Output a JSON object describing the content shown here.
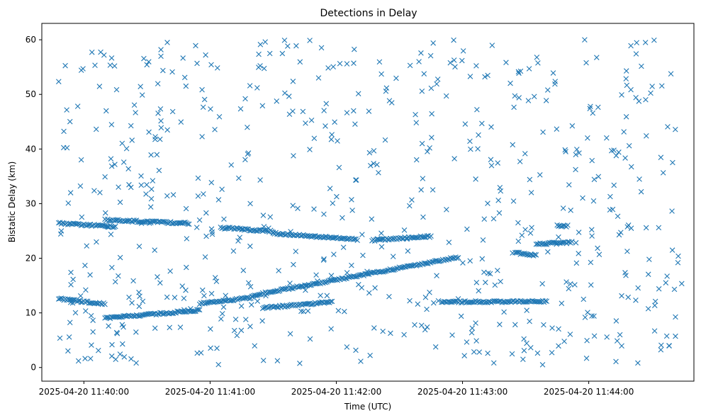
{
  "chart_data": {
    "type": "scatter",
    "title": "Detections in Delay",
    "xlabel": "Time (UTC)",
    "ylabel": "Bistatic Delay (km)",
    "marker": "x",
    "color": "#1f77b4",
    "x_unit": "time",
    "xlim": [
      "2025-04-20 11:39:40",
      "2025-04-20 11:44:50"
    ],
    "ylim": [
      -2.5,
      63
    ],
    "x_ticks": [
      {
        "time": "2025-04-20 11:40:00",
        "label": "2025-04-20 11:40:00"
      },
      {
        "time": "2025-04-20 11:41:00",
        "label": "2025-04-20 11:41:00"
      },
      {
        "time": "2025-04-20 11:42:00",
        "label": "2025-04-20 11:42:00"
      },
      {
        "time": "2025-04-20 11:43:00",
        "label": "2025-04-20 11:43:00"
      },
      {
        "time": "2025-04-20 11:44:00",
        "label": "2025-04-20 11:44:00"
      }
    ],
    "y_ticks": [
      0,
      10,
      20,
      30,
      40,
      50,
      60
    ],
    "grid": false,
    "legend": "none",
    "tracks": [
      {
        "start_time": "2025-04-20 11:39:48",
        "end_time": "2025-04-20 11:40:10",
        "start_delay": 12.6,
        "end_delay": 11.6
      },
      {
        "start_time": "2025-04-20 11:40:10",
        "end_time": "2025-04-20 11:40:55",
        "start_delay": 9.0,
        "end_delay": 10.5
      },
      {
        "start_time": "2025-04-20 11:40:55",
        "end_time": "2025-04-20 11:41:20",
        "start_delay": 11.7,
        "end_delay": 12.8
      },
      {
        "start_time": "2025-04-20 11:41:20",
        "end_time": "2025-04-20 11:42:58",
        "start_delay": 13.2,
        "end_delay": 20.2
      },
      {
        "start_time": "2025-04-20 11:41:25",
        "end_time": "2025-04-20 11:41:58",
        "start_delay": 10.9,
        "end_delay": 12.0
      },
      {
        "start_time": "2025-04-20 11:42:50",
        "end_time": "2025-04-20 11:43:40",
        "start_delay": 12.0,
        "end_delay": 12.1
      },
      {
        "start_time": "2025-04-20 11:39:48",
        "end_time": "2025-04-20 11:40:15",
        "start_delay": 26.4,
        "end_delay": 25.8
      },
      {
        "start_time": "2025-04-20 11:40:10",
        "end_time": "2025-04-20 11:40:50",
        "start_delay": 27.0,
        "end_delay": 26.4
      },
      {
        "start_time": "2025-04-20 11:41:05",
        "end_time": "2025-04-20 11:41:30",
        "start_delay": 25.6,
        "end_delay": 24.9
      },
      {
        "start_time": "2025-04-20 11:41:30",
        "end_time": "2025-04-20 11:41:55",
        "start_delay": 24.6,
        "end_delay": 23.8
      },
      {
        "start_time": "2025-04-20 11:41:55",
        "end_time": "2025-04-20 11:42:10",
        "start_delay": 23.9,
        "end_delay": 23.4
      },
      {
        "start_time": "2025-04-20 11:42:17",
        "end_time": "2025-04-20 11:42:45",
        "start_delay": 23.3,
        "end_delay": 24.0
      },
      {
        "start_time": "2025-04-20 11:43:25",
        "end_time": "2025-04-20 11:43:35",
        "start_delay": 21.0,
        "end_delay": 20.5
      },
      {
        "start_time": "2025-04-20 11:43:35",
        "end_time": "2025-04-20 11:43:52",
        "start_delay": 22.6,
        "end_delay": 22.9
      },
      {
        "start_time": "2025-04-20 11:43:45",
        "end_time": "2025-04-20 11:43:50",
        "start_delay": 25.9,
        "end_delay": 25.9
      }
    ],
    "clutter": {
      "time_range": [
        "2025-04-20 11:39:48",
        "2025-04-20 11:44:45"
      ],
      "delay_range": [
        0.5,
        60
      ],
      "approx_count": 650
    }
  }
}
